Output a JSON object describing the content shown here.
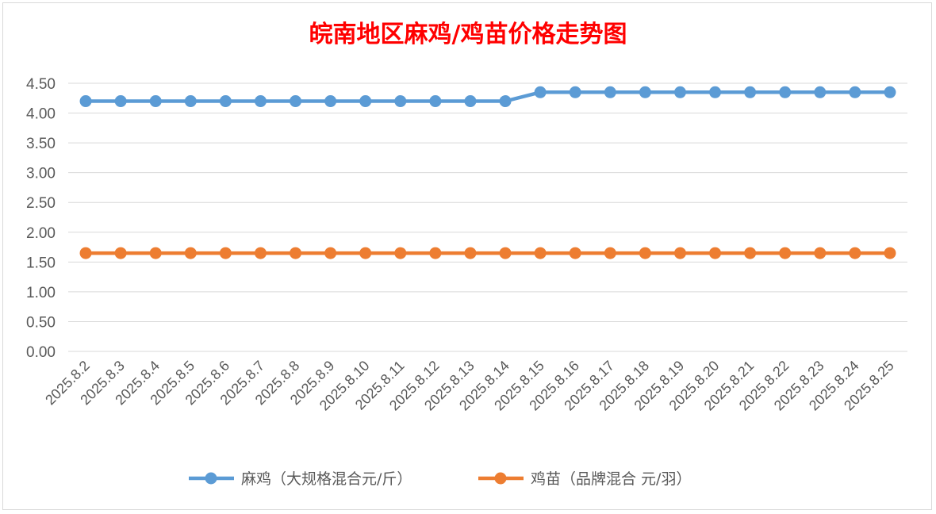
{
  "chart_data": {
    "type": "line",
    "title": "皖南地区麻鸡/鸡苗价格走势图",
    "xlabel": "",
    "ylabel": "",
    "categories": [
      "2025.8.2",
      "2025.8.3",
      "2025.8.4",
      "2025.8.5",
      "2025.8.6",
      "2025.8.7",
      "2025.8.8",
      "2025.8.9",
      "2025.8.10",
      "2025.8.11",
      "2025.8.12",
      "2025.8.13",
      "2025.8.14",
      "2025.8.15",
      "2025.8.16",
      "2025.8.17",
      "2025.8.18",
      "2025.8.19",
      "2025.8.20",
      "2025.8.21",
      "2025.8.22",
      "2025.8.23",
      "2025.8.24",
      "2025.8.25"
    ],
    "ylim": [
      0,
      4.5
    ],
    "yticks": [
      "0.00",
      "0.50",
      "1.00",
      "1.50",
      "2.00",
      "2.50",
      "3.00",
      "3.50",
      "4.00",
      "4.50"
    ],
    "grid": true,
    "legend_position": "bottom",
    "series": [
      {
        "name": "麻鸡（大规格混合元/斤）",
        "color": "#5b9bd5",
        "values": [
          4.2,
          4.2,
          4.2,
          4.2,
          4.2,
          4.2,
          4.2,
          4.2,
          4.2,
          4.2,
          4.2,
          4.2,
          4.2,
          4.35,
          4.35,
          4.35,
          4.35,
          4.35,
          4.35,
          4.35,
          4.35,
          4.35,
          4.35,
          4.35
        ]
      },
      {
        "name": "鸡苗（品牌混合 元/羽）",
        "color": "#ed7d31",
        "values": [
          1.65,
          1.65,
          1.65,
          1.65,
          1.65,
          1.65,
          1.65,
          1.65,
          1.65,
          1.65,
          1.65,
          1.65,
          1.65,
          1.65,
          1.65,
          1.65,
          1.65,
          1.65,
          1.65,
          1.65,
          1.65,
          1.65,
          1.65,
          1.65
        ]
      }
    ]
  }
}
